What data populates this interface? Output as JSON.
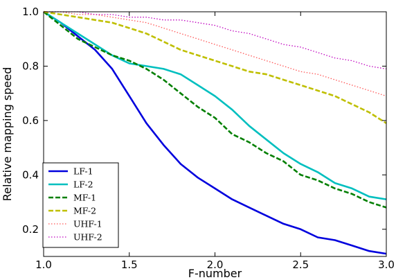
{
  "chart_data": {
    "type": "line",
    "title": "",
    "xlabel": "F-number",
    "ylabel": "Relative mapping speed",
    "xlim": [
      1.0,
      3.0
    ],
    "ylim": [
      0.1,
      1.0
    ],
    "xticks": [
      "1.0",
      "1.5",
      "2.0",
      "2.5",
      "3.0"
    ],
    "xtick_values": [
      1.0,
      1.5,
      2.0,
      2.5,
      3.0
    ],
    "yticks": [
      "0.2",
      "0.4",
      "0.6",
      "0.8",
      "1.0"
    ],
    "ytick_values": [
      0.2,
      0.4,
      0.6,
      0.8,
      1.0
    ],
    "grid": false,
    "legend_position": "lower-left",
    "series": [
      {
        "name": "LF-1",
        "color": "#0000dd",
        "style": "solid",
        "x": [
          1.0,
          1.1,
          1.2,
          1.3,
          1.4,
          1.5,
          1.6,
          1.7,
          1.8,
          1.9,
          2.0,
          2.1,
          2.2,
          2.3,
          2.4,
          2.5,
          2.6,
          2.7,
          2.8,
          2.9,
          3.0
        ],
        "y": [
          1.0,
          0.96,
          0.91,
          0.86,
          0.79,
          0.69,
          0.59,
          0.51,
          0.44,
          0.39,
          0.35,
          0.31,
          0.28,
          0.25,
          0.22,
          0.2,
          0.17,
          0.16,
          0.14,
          0.12,
          0.11
        ]
      },
      {
        "name": "LF-2",
        "color": "#00bfbf",
        "style": "solid",
        "x": [
          1.0,
          1.1,
          1.2,
          1.3,
          1.4,
          1.5,
          1.6,
          1.7,
          1.8,
          1.9,
          2.0,
          2.1,
          2.2,
          2.3,
          2.4,
          2.5,
          2.6,
          2.7,
          2.8,
          2.9,
          3.0
        ],
        "y": [
          1.0,
          0.96,
          0.92,
          0.88,
          0.84,
          0.81,
          0.8,
          0.79,
          0.77,
          0.73,
          0.69,
          0.64,
          0.58,
          0.53,
          0.48,
          0.44,
          0.41,
          0.37,
          0.35,
          0.32,
          0.31
        ]
      },
      {
        "name": "MF-1",
        "color": "#007f00",
        "style": "dashed",
        "x": [
          1.0,
          1.1,
          1.2,
          1.3,
          1.4,
          1.5,
          1.6,
          1.7,
          1.8,
          1.9,
          2.0,
          2.1,
          2.2,
          2.3,
          2.4,
          2.5,
          2.6,
          2.7,
          2.8,
          2.9,
          3.0
        ],
        "y": [
          1.0,
          0.95,
          0.9,
          0.87,
          0.84,
          0.82,
          0.79,
          0.75,
          0.7,
          0.65,
          0.61,
          0.55,
          0.52,
          0.48,
          0.45,
          0.4,
          0.38,
          0.35,
          0.33,
          0.3,
          0.28
        ]
      },
      {
        "name": "MF-2",
        "color": "#bfbf00",
        "style": "dashed",
        "x": [
          1.0,
          1.1,
          1.2,
          1.3,
          1.4,
          1.5,
          1.6,
          1.7,
          1.8,
          1.9,
          2.0,
          2.1,
          2.2,
          2.3,
          2.4,
          2.5,
          2.6,
          2.7,
          2.8,
          2.9,
          3.0
        ],
        "y": [
          1.0,
          0.99,
          0.98,
          0.97,
          0.96,
          0.94,
          0.92,
          0.89,
          0.86,
          0.84,
          0.82,
          0.8,
          0.78,
          0.77,
          0.75,
          0.73,
          0.71,
          0.69,
          0.66,
          0.63,
          0.59
        ]
      },
      {
        "name": "UHF-1",
        "color": "#ff5555",
        "style": "dotted",
        "x": [
          1.0,
          1.1,
          1.2,
          1.3,
          1.4,
          1.5,
          1.6,
          1.7,
          1.8,
          1.9,
          2.0,
          2.1,
          2.2,
          2.3,
          2.4,
          2.5,
          2.6,
          2.7,
          2.8,
          2.9,
          3.0
        ],
        "y": [
          1.0,
          1.0,
          0.99,
          0.99,
          0.98,
          0.97,
          0.96,
          0.94,
          0.92,
          0.9,
          0.88,
          0.86,
          0.84,
          0.82,
          0.8,
          0.78,
          0.77,
          0.75,
          0.73,
          0.71,
          0.69
        ]
      },
      {
        "name": "UHF-2",
        "color": "#bf00bf",
        "style": "dotted",
        "x": [
          1.0,
          1.1,
          1.2,
          1.3,
          1.4,
          1.5,
          1.6,
          1.7,
          1.8,
          1.9,
          2.0,
          2.1,
          2.2,
          2.3,
          2.4,
          2.5,
          2.6,
          2.7,
          2.8,
          2.9,
          3.0
        ],
        "y": [
          1.0,
          1.0,
          1.0,
          0.99,
          0.99,
          0.98,
          0.98,
          0.97,
          0.97,
          0.96,
          0.95,
          0.93,
          0.92,
          0.9,
          0.88,
          0.87,
          0.85,
          0.83,
          0.82,
          0.8,
          0.79
        ]
      }
    ]
  }
}
